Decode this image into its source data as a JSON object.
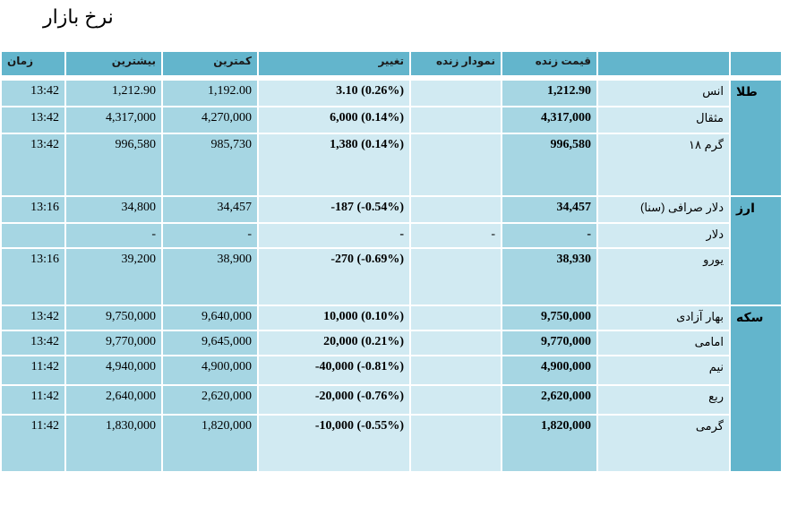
{
  "title": "نرخ بازار",
  "headers": {
    "time": "زمان",
    "high": "بیشترین",
    "low": "کمترین",
    "change": "تغییر",
    "chart": "نمودار زنده",
    "price": "قیمت زنده",
    "name": ""
  },
  "groups": [
    {
      "label": "طلا",
      "rows": [
        {
          "time": "13:42",
          "high": "1,212.90",
          "low": "1,192.00",
          "change": "3.10 (0.26%)",
          "chart": "",
          "price": "1,212.90",
          "name": "انس"
        },
        {
          "time": "13:42",
          "high": "4,317,000",
          "low": "4,270,000",
          "change": "6,000 (0.14%)",
          "chart": "",
          "price": "4,317,000",
          "name": "مثقال"
        },
        {
          "time": "13:42",
          "high": "996,580",
          "low": "985,730",
          "change": "1,380 (0.14%)",
          "chart": "",
          "price": "996,580",
          "name": "گرم ۱۸"
        }
      ]
    },
    {
      "label": "ارز",
      "rows": [
        {
          "time": "13:16",
          "high": "34,800",
          "low": "34,457",
          "change": "-187 (-0.54%)",
          "chart": "",
          "price": "34,457",
          "name": "دلار صرافی (سنا)"
        },
        {
          "time": "",
          "high": "-",
          "low": "-",
          "change": "-",
          "chart": "-",
          "price": "-",
          "name": "دلار"
        },
        {
          "time": "13:16",
          "high": "39,200",
          "low": "38,900",
          "change": "-270 (-0.69%)",
          "chart": "",
          "price": "38,930",
          "name": "یورو"
        }
      ]
    },
    {
      "label": "سکه",
      "rows": [
        {
          "time": "13:42",
          "high": "9,750,000",
          "low": "9,640,000",
          "change": "10,000 (0.10%)",
          "chart": "",
          "price": "9,750,000",
          "name": "بهار آزادی"
        },
        {
          "time": "13:42",
          "high": "9,770,000",
          "low": "9,645,000",
          "change": "20,000 (0.21%)",
          "chart": "",
          "price": "9,770,000",
          "name": "امامی"
        },
        {
          "time": "11:42",
          "high": "4,940,000",
          "low": "4,900,000",
          "change": "-40,000 (-0.81%)",
          "chart": "",
          "price": "4,900,000",
          "name": "نیم"
        },
        {
          "time": "11:42",
          "high": "2,640,000",
          "low": "2,620,000",
          "change": "-20,000 (-0.76%)",
          "chart": "",
          "price": "2,620,000",
          "name": "ربع"
        },
        {
          "time": "11:42",
          "high": "1,830,000",
          "low": "1,820,000",
          "change": "-10,000 (-0.55%)",
          "chart": "",
          "price": "1,820,000",
          "name": "گرمی"
        }
      ]
    }
  ]
}
